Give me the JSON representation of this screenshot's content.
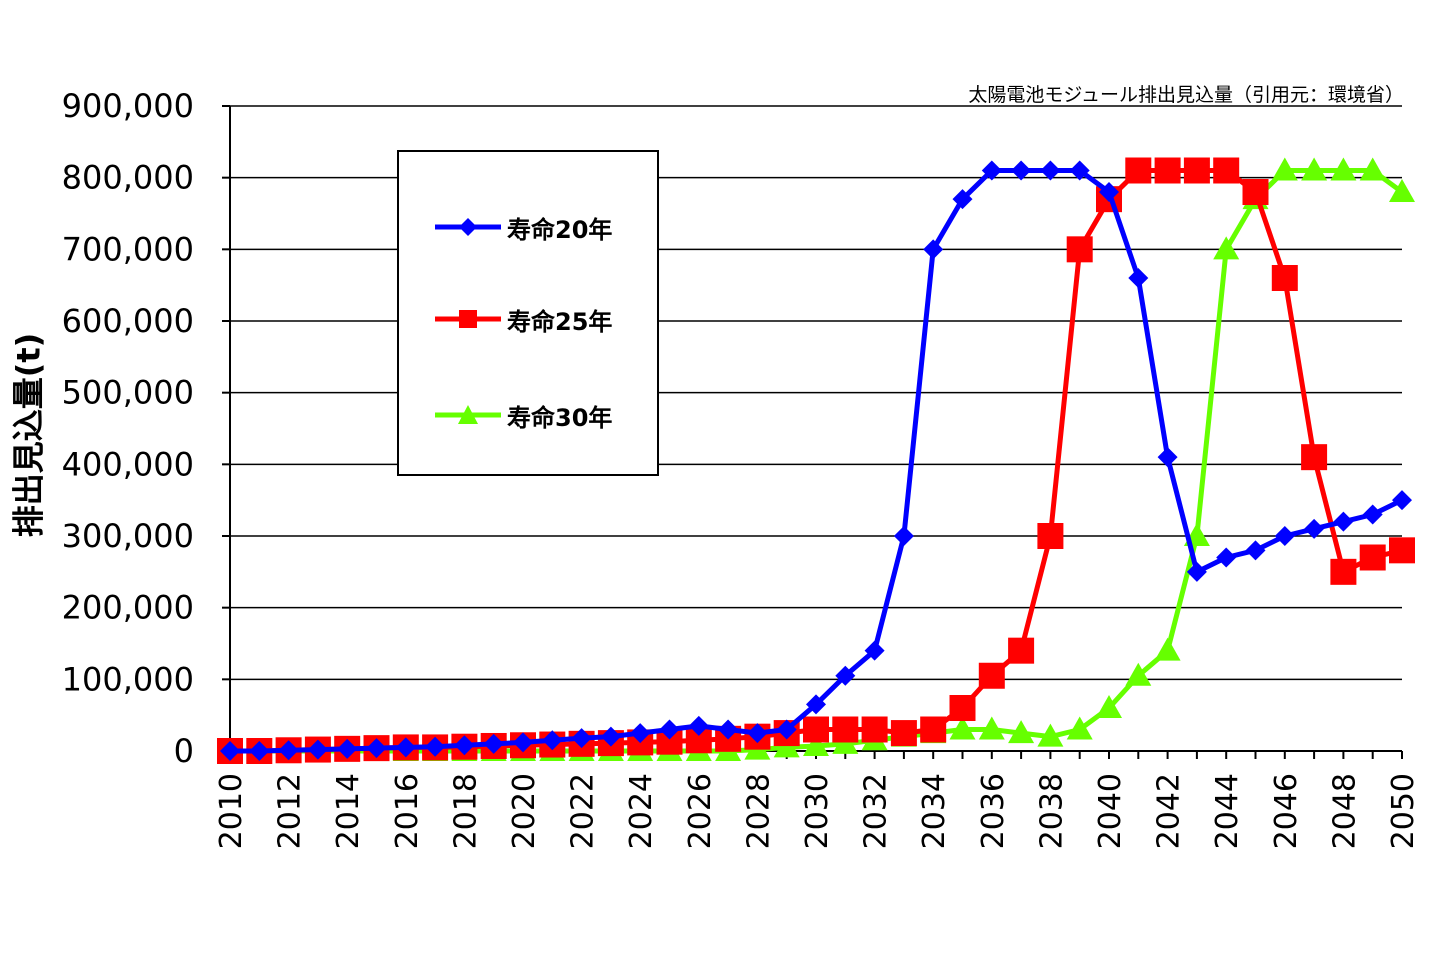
{
  "source_note": "太陽電池モジュール排出見込量（引用元：環境省）",
  "chart_data": {
    "type": "line",
    "ylabel": "排出見込量(t)",
    "xlabel": "",
    "ylim": [
      0,
      900000
    ],
    "yticks": [
      "900,000",
      "800,000",
      "700,000",
      "600,000",
      "500,000",
      "400,000",
      "300,000",
      "200,000",
      "100,000",
      "0"
    ],
    "ytick_values": [
      900000,
      800000,
      700000,
      600000,
      500000,
      400000,
      300000,
      200000,
      100000,
      0
    ],
    "xticks": [
      "2010",
      "2012",
      "2014",
      "2016",
      "2018",
      "2020",
      "2022",
      "2024",
      "2026",
      "2028",
      "2030",
      "2032",
      "2034",
      "2036",
      "2038",
      "2040",
      "2042",
      "2044",
      "2046",
      "2048",
      "2050"
    ],
    "x": [
      2010,
      2011,
      2012,
      2013,
      2014,
      2015,
      2016,
      2017,
      2018,
      2019,
      2020,
      2021,
      2022,
      2023,
      2024,
      2025,
      2026,
      2027,
      2028,
      2029,
      2030,
      2031,
      2032,
      2033,
      2034,
      2035,
      2036,
      2037,
      2038,
      2039,
      2040,
      2041,
      2042,
      2043,
      2044,
      2045,
      2046,
      2047,
      2048,
      2049,
      2050
    ],
    "grid": true,
    "legend_position": "upper-left inside plot",
    "series": [
      {
        "name": "寿命20年",
        "color": "#0000ff",
        "marker": "diamond",
        "values": [
          0,
          0,
          1000,
          2000,
          3000,
          4000,
          5000,
          6000,
          8000,
          10000,
          12000,
          15000,
          18000,
          20000,
          25000,
          30000,
          35000,
          30000,
          25000,
          30000,
          65000,
          105000,
          140000,
          300000,
          700000,
          770000,
          810000,
          810000,
          810000,
          810000,
          780000,
          660000,
          410000,
          250000,
          270000,
          280000,
          300000,
          310000,
          320000,
          330000,
          350000
        ]
      },
      {
        "name": "寿命25年",
        "color": "#ff0000",
        "marker": "square",
        "values": [
          0,
          0,
          1000,
          2000,
          3000,
          4000,
          5000,
          5000,
          6000,
          7000,
          8000,
          9000,
          10000,
          11000,
          12000,
          13000,
          15000,
          17000,
          20000,
          25000,
          30000,
          30000,
          30000,
          25000,
          30000,
          60000,
          105000,
          140000,
          300000,
          700000,
          770000,
          810000,
          810000,
          810000,
          810000,
          780000,
          660000,
          410000,
          250000,
          270000,
          280000
        ]
      },
      {
        "name": "寿命30年",
        "color": "#66ff00",
        "marker": "triangle",
        "values": [
          0,
          0,
          0,
          0,
          0,
          0,
          0,
          0,
          0,
          0,
          0,
          0,
          0,
          0,
          0,
          0,
          0,
          0,
          2000,
          5000,
          7000,
          10000,
          15000,
          20000,
          25000,
          30000,
          30000,
          25000,
          20000,
          30000,
          60000,
          105000,
          140000,
          300000,
          700000,
          770000,
          810000,
          810000,
          810000,
          810000,
          780000
        ]
      }
    ]
  }
}
